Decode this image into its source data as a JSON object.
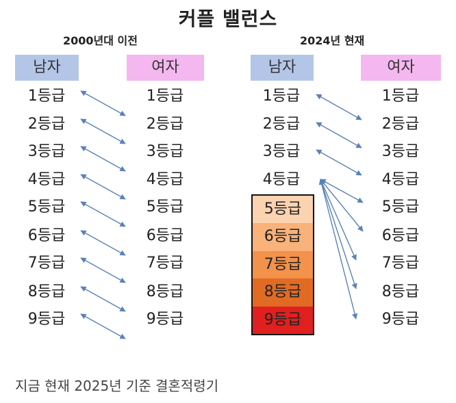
{
  "title": "커플 밸런스",
  "left_section": {
    "era_label": "2000년대 이전",
    "male_header": "남자",
    "female_header": "여자"
  },
  "right_section": {
    "era_label": "2024년 현재",
    "male_header": "남자",
    "female_header": "여자"
  },
  "grades": [
    "1등급",
    "2등급",
    "3등급",
    "4등급",
    "5등급",
    "6등급",
    "7등급",
    "8등급",
    "9등급"
  ],
  "right_male_highlight_colors": [
    "#fbd3b0",
    "#f8b27a",
    "#f2924b",
    "#e16b23",
    "#e0201e"
  ],
  "caption": "지금 현재 2025년 기준 결혼적령기",
  "colors": {
    "male_header_bg": "#b4c6e7",
    "female_header_bg": "#f4b7f0",
    "arrow": "#5b82b7"
  }
}
